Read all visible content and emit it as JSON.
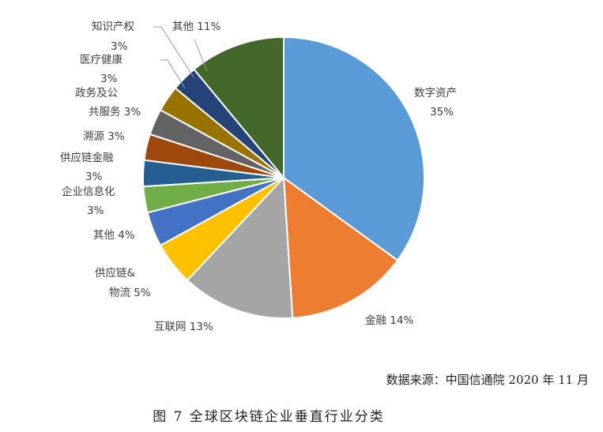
{
  "chart_data": {
    "type": "pie",
    "title": "",
    "legend": "none",
    "slices": [
      {
        "label": "数字资产",
        "pct_label": "35%",
        "value": 35,
        "color": "#5b9bd5"
      },
      {
        "label": "金融",
        "pct_label": "14%",
        "value": 14,
        "color": "#ed7d31"
      },
      {
        "label": "互联网",
        "pct_label": "13%",
        "value": 13,
        "color": "#a5a5a5"
      },
      {
        "label": "供应链&物流",
        "pct_label": "5%",
        "value": 5,
        "color": "#ffc000"
      },
      {
        "label": "其他",
        "pct_label": "4%",
        "value": 4,
        "color": "#4472c4"
      },
      {
        "label": "企业信息化",
        "pct_label": "3%",
        "value": 3,
        "color": "#70ad47"
      },
      {
        "label": "供应链金融",
        "pct_label": "3%",
        "value": 3,
        "color": "#255e91"
      },
      {
        "label": "溯源",
        "pct_label": "3%",
        "value": 3,
        "color": "#9e480e"
      },
      {
        "label": "政务及公共服务",
        "pct_label": "3%",
        "value": 3,
        "color": "#636363"
      },
      {
        "label": "医疗健康",
        "pct_label": "3%",
        "value": 3,
        "color": "#997300"
      },
      {
        "label": "知识产权",
        "pct_label": "3%",
        "value": 3,
        "color": "#264478"
      },
      {
        "label": "其他",
        "pct_label": "11%",
        "value": 11,
        "color": "#43682b"
      }
    ]
  },
  "source_note": "数据来源：中国信通院 2020 年 11 月",
  "caption": "图 7 全球区块链企业垂直行业分类"
}
